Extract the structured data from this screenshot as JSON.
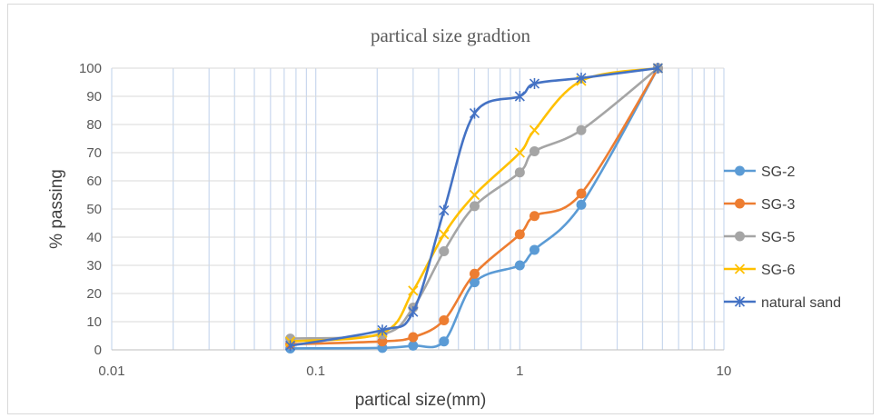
{
  "chart_data": {
    "type": "line",
    "title": "partical size gradtion",
    "xlabel": "partical size(mm)",
    "ylabel": "% passing",
    "x_scale": "log",
    "xlim": [
      0.01,
      10
    ],
    "ylim": [
      0,
      100
    ],
    "x_tick_labels": [
      "0.01",
      "0.1",
      "1",
      "10"
    ],
    "y_tick_labels": [
      "0",
      "10",
      "20",
      "30",
      "40",
      "50",
      "60",
      "70",
      "80",
      "90",
      "100"
    ],
    "grid": true,
    "legend_position": "right",
    "series": [
      {
        "name": "SG-2",
        "color": "#5b9bd5",
        "marker": "circle",
        "x": [
          0.075,
          0.212,
          0.3,
          0.425,
          0.6,
          1.0,
          1.18,
          2.0,
          4.75
        ],
        "y": [
          0.5,
          0.7,
          1.5,
          3,
          24,
          30,
          35.5,
          51.5,
          100
        ]
      },
      {
        "name": "SG-3",
        "color": "#ed7d31",
        "marker": "circle",
        "x": [
          0.075,
          0.212,
          0.3,
          0.425,
          0.6,
          1.0,
          1.18,
          2.0,
          4.75
        ],
        "y": [
          2,
          3,
          4.5,
          10.5,
          27,
          41,
          47.5,
          55.5,
          100
        ]
      },
      {
        "name": "SG-5",
        "color": "#a5a5a5",
        "marker": "circle",
        "x": [
          0.075,
          0.212,
          0.3,
          0.425,
          0.6,
          1.0,
          1.18,
          2.0,
          4.75
        ],
        "y": [
          4,
          5.5,
          15,
          35,
          51,
          63,
          70.5,
          78,
          100
        ]
      },
      {
        "name": "SG-6",
        "color": "#ffc000",
        "marker": "x",
        "x": [
          0.075,
          0.212,
          0.3,
          0.425,
          0.6,
          1.0,
          1.18,
          2.0,
          4.75
        ],
        "y": [
          3,
          6,
          21,
          41,
          55,
          70,
          78,
          95.5,
          100
        ]
      },
      {
        "name": "natural sand",
        "color": "#4472c4",
        "marker": "star",
        "x": [
          0.075,
          0.212,
          0.3,
          0.425,
          0.6,
          1.0,
          1.18,
          2.0,
          4.75
        ],
        "y": [
          1.5,
          7,
          13.5,
          49.5,
          84,
          90,
          94.5,
          96.5,
          100
        ]
      }
    ]
  }
}
